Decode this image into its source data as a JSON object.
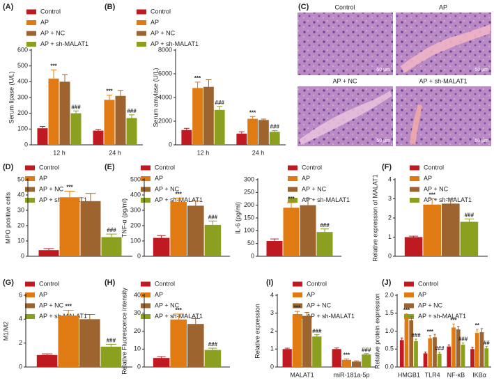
{
  "chart_data": [
    {
      "type": "bar",
      "panel": "(A)",
      "ylabel": "Serum lipase (U/L)",
      "categories": [
        "12 h",
        "24 h"
      ],
      "ylim": [
        0,
        600
      ],
      "yticks": [
        0,
        100,
        200,
        300,
        400,
        500,
        600
      ],
      "series": [
        {
          "name": "Control",
          "color": "#bf1a22",
          "values": [
            105,
            90
          ],
          "errors": [
            12,
            8
          ],
          "annotations": [
            null,
            null
          ]
        },
        {
          "name": "AP",
          "color": "#e07a12",
          "values": [
            420,
            285
          ],
          "errors": [
            55,
            30
          ],
          "annotations": [
            "***",
            "***"
          ]
        },
        {
          "name": "AP + NC",
          "color": "#9e6430",
          "values": [
            400,
            310
          ],
          "errors": [
            45,
            35
          ],
          "annotations": [
            null,
            null
          ]
        },
        {
          "name": "AP + sh-MALAT1",
          "color": "#8aa01e",
          "values": [
            200,
            170
          ],
          "errors": [
            15,
            20
          ],
          "annotations": [
            "###",
            "###"
          ]
        }
      ]
    },
    {
      "type": "bar",
      "panel": "(B)",
      "ylabel": "Serum amylase (U/L)",
      "categories": [
        "12 h",
        "24 h"
      ],
      "ylim": [
        0,
        8000
      ],
      "yticks": [
        0,
        2000,
        4000,
        6000,
        8000
      ],
      "series": [
        {
          "name": "Control",
          "color": "#bf1a22",
          "values": [
            1250,
            950
          ],
          "errors": [
            150,
            150
          ],
          "annotations": [
            null,
            null
          ]
        },
        {
          "name": "AP",
          "color": "#e07a12",
          "values": [
            4800,
            2200
          ],
          "errors": [
            500,
            200
          ],
          "annotations": [
            "***",
            "***"
          ]
        },
        {
          "name": "AP + NC",
          "color": "#9e6430",
          "values": [
            4900,
            2100
          ],
          "errors": [
            600,
            80
          ],
          "annotations": [
            null,
            null
          ]
        },
        {
          "name": "AP + sh-MALAT1",
          "color": "#8aa01e",
          "values": [
            2950,
            1100
          ],
          "errors": [
            300,
            100
          ],
          "annotations": [
            "###",
            "###"
          ]
        }
      ]
    },
    {
      "type": "bar",
      "panel": "(D)",
      "ylabel": "MPO positive cells",
      "categories": [
        null
      ],
      "ylim": [
        0,
        50
      ],
      "yticks": [
        0,
        10,
        20,
        30,
        40,
        50
      ],
      "series": [
        {
          "name": "Control",
          "color": "#bf1a22",
          "values": [
            4
          ],
          "errors": [
            1
          ],
          "annotations": [
            null
          ]
        },
        {
          "name": "AP",
          "color": "#e07a12",
          "values": [
            38.5
          ],
          "errors": [
            4
          ],
          "annotations": [
            "***"
          ]
        },
        {
          "name": "AP + NC",
          "color": "#9e6430",
          "values": [
            36
          ],
          "errors": [
            5
          ],
          "annotations": [
            null
          ]
        },
        {
          "name": "AP + sh-MALAT1",
          "color": "#8aa01e",
          "values": [
            12.5
          ],
          "errors": [
            2
          ],
          "annotations": [
            "###"
          ]
        }
      ]
    },
    {
      "type": "bar",
      "panel": "(E)",
      "ylabel": "TNF-α (pg/ml)",
      "categories": [
        null
      ],
      "ylim": [
        0,
        500
      ],
      "yticks": [
        0,
        100,
        200,
        300,
        400,
        500
      ],
      "series": [
        {
          "name": "Control",
          "color": "#bf1a22",
          "values": [
            120
          ],
          "errors": [
            15
          ],
          "annotations": [
            null
          ]
        },
        {
          "name": "AP",
          "color": "#e07a12",
          "values": [
            355
          ],
          "errors": [
            25
          ],
          "annotations": [
            "***"
          ]
        },
        {
          "name": "AP + NC",
          "color": "#9e6430",
          "values": [
            330
          ],
          "errors": [
            30
          ],
          "annotations": [
            null
          ]
        },
        {
          "name": "AP + sh-MALAT1",
          "color": "#8aa01e",
          "values": [
            205
          ],
          "errors": [
            25
          ],
          "annotations": [
            "###"
          ]
        }
      ]
    },
    {
      "type": "bar",
      "ylabel": "IL-6 (pg/ml)",
      "categories": [
        null
      ],
      "ylim": [
        0,
        300
      ],
      "yticks": [
        0,
        50,
        100,
        150,
        200,
        250,
        300
      ],
      "series": [
        {
          "name": "Control",
          "color": "#bf1a22",
          "values": [
            60
          ],
          "errors": [
            8
          ],
          "annotations": [
            null
          ]
        },
        {
          "name": "AP",
          "color": "#e07a12",
          "values": [
            190
          ],
          "errors": [
            20
          ],
          "annotations": [
            "***"
          ]
        },
        {
          "name": "AP + NC",
          "color": "#9e6430",
          "values": [
            200
          ],
          "errors": [
            25
          ],
          "annotations": [
            null
          ]
        },
        {
          "name": "AP + sh-MALAT1",
          "color": "#8aa01e",
          "values": [
            95
          ],
          "errors": [
            12
          ],
          "annotations": [
            "###"
          ]
        }
      ]
    },
    {
      "type": "bar",
      "panel": "(F)",
      "ylabel": "Relative expression of MALAT1",
      "categories": [
        null
      ],
      "ylim": [
        0,
        4
      ],
      "yticks": [
        0,
        1,
        2,
        3,
        4
      ],
      "series": [
        {
          "name": "Control",
          "color": "#bf1a22",
          "values": [
            1.0
          ],
          "errors": [
            0.05
          ],
          "annotations": [
            null
          ]
        },
        {
          "name": "AP",
          "color": "#e07a12",
          "values": [
            2.7
          ],
          "errors": [
            0.3
          ],
          "annotations": [
            "***"
          ]
        },
        {
          "name": "AP + NC",
          "color": "#9e6430",
          "values": [
            2.75
          ],
          "errors": [
            0.25
          ],
          "annotations": [
            null
          ]
        },
        {
          "name": "AP + sh-MALAT1",
          "color": "#8aa01e",
          "values": [
            1.8
          ],
          "errors": [
            0.15
          ],
          "annotations": [
            "###"
          ]
        }
      ]
    },
    {
      "type": "bar",
      "panel": "(G)",
      "ylabel": "M1/M2",
      "categories": [
        null
      ],
      "ylim": [
        0,
        6
      ],
      "yticks": [
        0,
        2,
        4,
        6
      ],
      "series": [
        {
          "name": "Control",
          "color": "#bf1a22",
          "values": [
            1.0
          ],
          "errors": [
            0.1
          ],
          "annotations": [
            null
          ]
        },
        {
          "name": "AP",
          "color": "#e07a12",
          "values": [
            4.3
          ],
          "errors": [
            0.45
          ],
          "annotations": [
            "***"
          ]
        },
        {
          "name": "AP + NC",
          "color": "#9e6430",
          "values": [
            4.0
          ],
          "errors": [
            0.4
          ],
          "annotations": [
            null
          ]
        },
        {
          "name": "AP + sh-MALAT1",
          "color": "#8aa01e",
          "values": [
            1.7
          ],
          "errors": [
            0.2
          ],
          "annotations": [
            "###"
          ]
        }
      ]
    },
    {
      "type": "bar",
      "panel": "(H)",
      "ylabel": "Relative Fluorescence intensity",
      "categories": [
        null
      ],
      "ylim": [
        0,
        40
      ],
      "yticks": [
        0,
        10,
        20,
        30,
        40
      ],
      "series": [
        {
          "name": "Control",
          "color": "#bf1a22",
          "values": [
            5
          ],
          "errors": [
            0.8
          ],
          "annotations": [
            null
          ]
        },
        {
          "name": "AP",
          "color": "#e07a12",
          "values": [
            26.5
          ],
          "errors": [
            3
          ],
          "annotations": [
            "***"
          ]
        },
        {
          "name": "AP + NC",
          "color": "#9e6430",
          "values": [
            24
          ],
          "errors": [
            3
          ],
          "annotations": [
            null
          ]
        },
        {
          "name": "AP + sh-MALAT1",
          "color": "#8aa01e",
          "values": [
            9.5
          ],
          "errors": [
            1
          ],
          "annotations": [
            "###"
          ]
        }
      ]
    },
    {
      "type": "bar",
      "panel": "(I)",
      "ylabel": "Relative expression",
      "categories": [
        "MALAT1",
        "miR-181a-5p"
      ],
      "ylim": [
        0,
        4
      ],
      "yticks": [
        0,
        1,
        2,
        3,
        4
      ],
      "series": [
        {
          "name": "Control",
          "color": "#bf1a22",
          "values": [
            1.0,
            1.0
          ],
          "errors": [
            0.05,
            0.06
          ],
          "annotations": [
            null,
            null
          ]
        },
        {
          "name": "AP",
          "color": "#e07a12",
          "values": [
            2.9,
            0.4
          ],
          "errors": [
            0.2,
            0.05
          ],
          "annotations": [
            "***",
            "***"
          ]
        },
        {
          "name": "AP + NC",
          "color": "#9e6430",
          "values": [
            2.85,
            0.3
          ],
          "errors": [
            0.2,
            0.04
          ],
          "annotations": [
            null,
            null
          ]
        },
        {
          "name": "AP + sh-MALAT1",
          "color": "#8aa01e",
          "values": [
            1.7,
            0.7
          ],
          "errors": [
            0.1,
            0.05
          ],
          "annotations": [
            "###",
            "###"
          ]
        }
      ]
    },
    {
      "type": "bar",
      "panel": "(J)",
      "ylabel": "Relative protein expression",
      "categories": [
        "HMGB1",
        "TLR4",
        "NF-κB",
        "IKBα"
      ],
      "ylim": [
        0,
        2
      ],
      "yticks": [
        {
          "value": 0,
          "label": "0.0"
        },
        {
          "value": 0.5,
          "label": "0.5"
        },
        {
          "value": 1,
          "label": "1.0"
        },
        {
          "value": 1.5,
          "label": "1.5"
        },
        {
          "value": 2,
          "label": "2.0"
        }
      ],
      "series": [
        {
          "name": "Control",
          "color": "#bf1a22",
          "values": [
            0.75,
            0.38,
            0.57,
            0.5
          ],
          "errors": [
            0.06,
            0.04,
            0.05,
            0.05
          ],
          "annotations": [
            null,
            null,
            null,
            null
          ]
        },
        {
          "name": "AP",
          "color": "#e07a12",
          "values": [
            1.38,
            0.8,
            1.1,
            0.95
          ],
          "errors": [
            0.1,
            0.08,
            0.1,
            0.1
          ],
          "annotations": [
            "***",
            "***",
            "***",
            "**"
          ]
        },
        {
          "name": "AP + NC",
          "color": "#9e6430",
          "values": [
            1.3,
            0.83,
            1.05,
            0.97
          ],
          "errors": [
            0.1,
            0.08,
            0.08,
            0.1
          ],
          "annotations": [
            null,
            null,
            null,
            null
          ]
        },
        {
          "name": "AP + sh-MALAT1",
          "color": "#8aa01e",
          "values": [
            0.72,
            0.37,
            0.62,
            0.52
          ],
          "errors": [
            0.06,
            0.04,
            0.05,
            0.05
          ],
          "annotations": [
            "###",
            "###",
            "###",
            "##"
          ]
        }
      ]
    }
  ],
  "histology": {
    "panel": "(C)",
    "images": [
      {
        "title": "Control",
        "scale": "50 μm"
      },
      {
        "title": "AP",
        "scale": "50 μm"
      },
      {
        "title": "AP + NC",
        "scale": "50 μm"
      },
      {
        "title": "AP + sh-MALAT1",
        "scale": "50 μm"
      }
    ]
  }
}
